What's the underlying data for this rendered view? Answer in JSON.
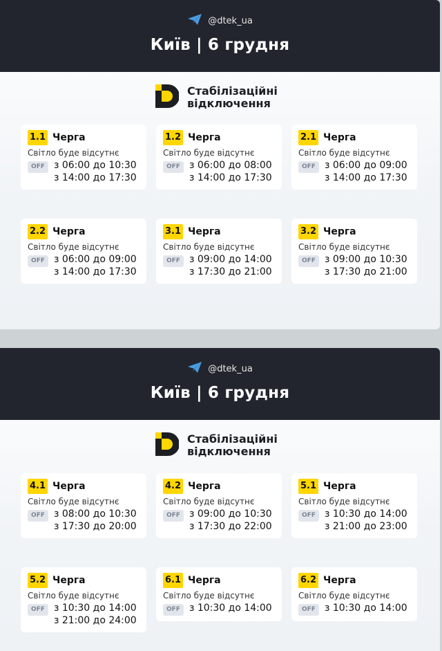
{
  "colors": {
    "header_bg": "#22252d",
    "accent_yellow": "#ffd600",
    "telegram_blue": "#4a9be0",
    "page_bg": "#cdd3d5"
  },
  "panels": [
    {
      "handle": "@dtek_ua",
      "title": "Київ | 6 грудня",
      "logo_line1": "Стабілізаційні",
      "logo_line2": "відключення",
      "cards": [
        {
          "queue": "1.1",
          "label": "Черга",
          "status": "Світло буде відсутнє",
          "off": "OFF",
          "times": [
            "з 06:00 до 10:30",
            "з 14:00 до 17:30"
          ]
        },
        {
          "queue": "1.2",
          "label": "Черга",
          "status": "Світло буде відсутнє",
          "off": "OFF",
          "times": [
            "з 06:00 до 08:00",
            "з 14:00 до 17:30"
          ]
        },
        {
          "queue": "2.1",
          "label": "Черга",
          "status": "Світло буде відсутнє",
          "off": "OFF",
          "times": [
            "з 06:00 до 09:00",
            "з 14:00 до 17:30"
          ]
        },
        {
          "queue": "2.2",
          "label": "Черга",
          "status": "Світло буде відсутнє",
          "off": "OFF",
          "times": [
            "з 06:00 до 09:00",
            "з 14:00 до 17:30"
          ]
        },
        {
          "queue": "3.1",
          "label": "Черга",
          "status": "Світло буде відсутнє",
          "off": "OFF",
          "times": [
            "з 09:00 до 14:00",
            "з 17:30 до 21:00"
          ]
        },
        {
          "queue": "3.2",
          "label": "Черга",
          "status": "Світло буде відсутнє",
          "off": "OFF",
          "times": [
            "з 09:00 до 10:30",
            "з 17:30 до 21:00"
          ]
        }
      ]
    },
    {
      "handle": "@dtek_ua",
      "title": "Київ | 6 грудня",
      "logo_line1": "Стабілізаційні",
      "logo_line2": "відключення",
      "cards": [
        {
          "queue": "4.1",
          "label": "Черга",
          "status": "Світло буде відсутнє",
          "off": "OFF",
          "times": [
            "з 08:00 до 10:30",
            "з 17:30 до 20:00"
          ]
        },
        {
          "queue": "4.2",
          "label": "Черга",
          "status": "Світло буде відсутнє",
          "off": "OFF",
          "times": [
            "з 09:00 до 10:30",
            "з 17:30 до 22:00"
          ]
        },
        {
          "queue": "5.1",
          "label": "Черга",
          "status": "Світло буде відсутнє",
          "off": "OFF",
          "times": [
            "з 10:30 до 14:00",
            "з 21:00 до 23:00"
          ]
        },
        {
          "queue": "5.2",
          "label": "Черга",
          "status": "Світло буде відсутнє",
          "off": "OFF",
          "times": [
            "з 10:30 до 14:00",
            "з 21:00 до 24:00"
          ]
        },
        {
          "queue": "6.1",
          "label": "Черга",
          "status": "Світло буде відсутнє",
          "off": "OFF",
          "times": [
            "з 10:30 до 14:00"
          ]
        },
        {
          "queue": "6.2",
          "label": "Черга",
          "status": "Світло буде відсутнє",
          "off": "OFF",
          "times": [
            "з 10:30 до 14:00"
          ]
        }
      ]
    }
  ]
}
